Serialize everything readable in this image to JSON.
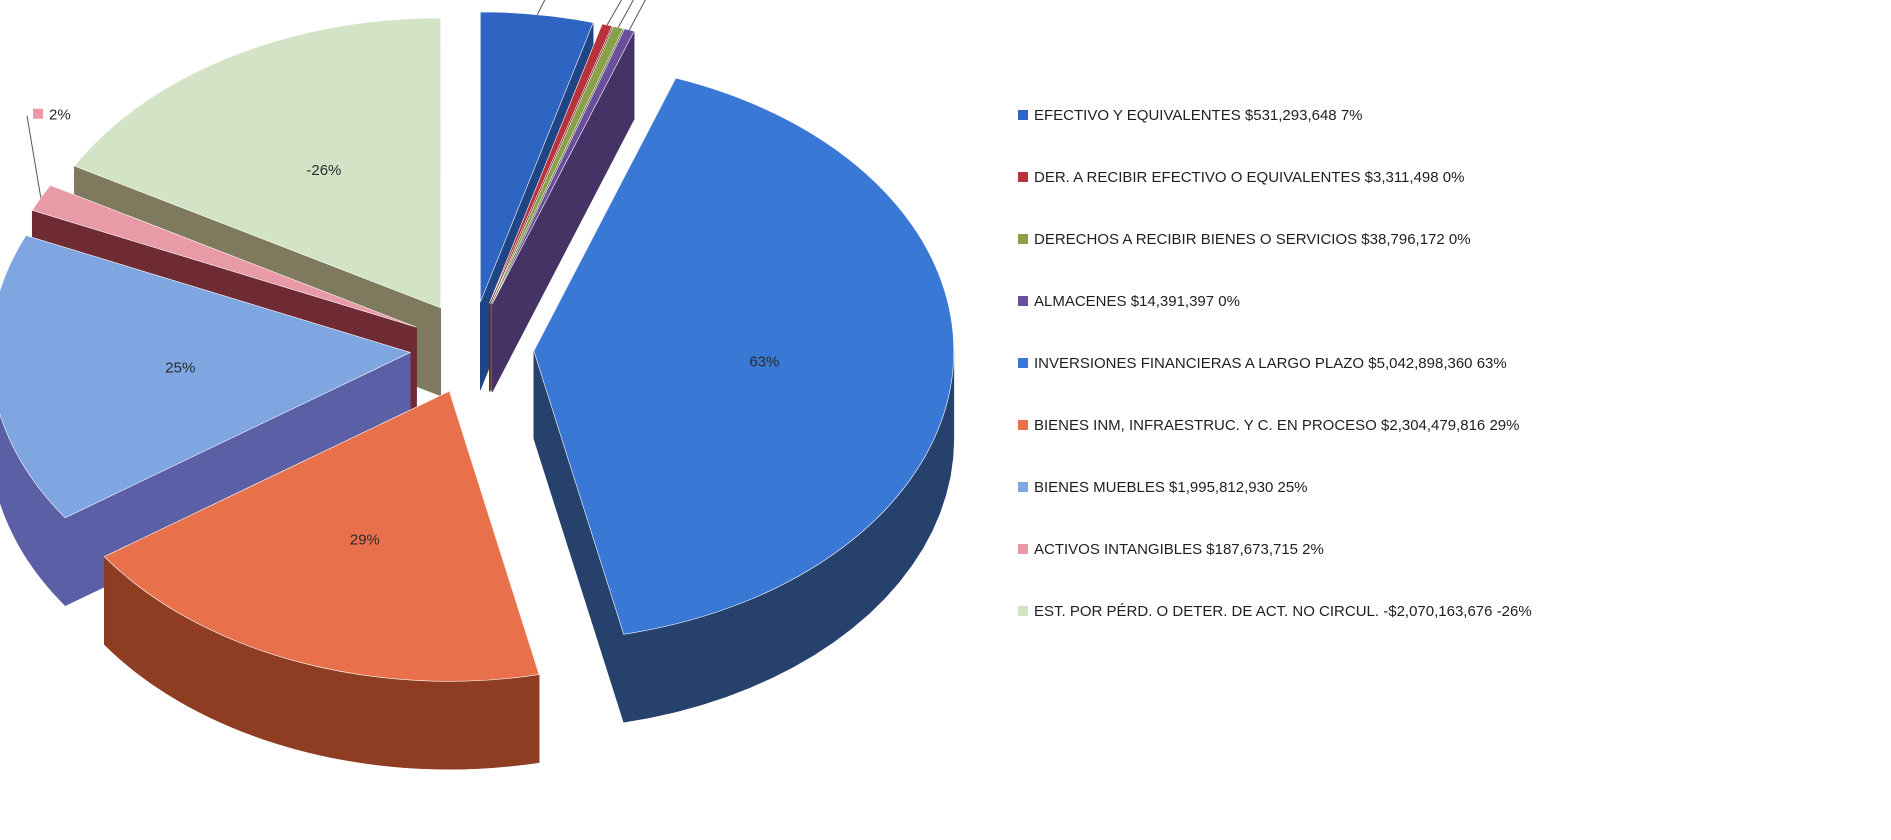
{
  "chart_data": {
    "type": "pie",
    "title": "",
    "slices": [
      {
        "label": "EFECTIVO Y EQUIVALENTES",
        "amount": "$531,293,648",
        "pct_label": "7%",
        "value": 531293648,
        "color": "#2e64c2",
        "side": "#1f4585"
      },
      {
        "label": "DER. A RECIBIR EFECTIVO O EQUIVALENTES",
        "amount": "$3,311,498",
        "pct_label": "0%",
        "value": 3311498,
        "color": "#b8323c",
        "side": "#7a1f26"
      },
      {
        "label": "DERECHOS A RECIBIR BIENES O SERVICIOS",
        "amount": "$38,796,172",
        "pct_label": "0%",
        "value": 38796172,
        "color": "#8aa04a",
        "side": "#5b6b2f"
      },
      {
        "label": "ALMACENES",
        "amount": "$14,391,397",
        "pct_label": "0%",
        "value": 14391397,
        "color": "#6b4f9c",
        "side": "#463366"
      },
      {
        "label": "INVERSIONES FINANCIERAS A LARGO PLAZO",
        "amount": "$5,042,898,360",
        "pct_label": "63%",
        "value": 5042898360,
        "color": "#3a78d6",
        "side": "#26416c"
      },
      {
        "label": "BIENES INM, INFRAESTRUC. Y C. EN PROCESO",
        "amount": "$2,304,479,816",
        "pct_label": "29%",
        "value": 2304479816,
        "color": "#e8704a",
        "side": "#8e3d22"
      },
      {
        "label": "BIENES MUEBLES",
        "amount": "$1,995,812,930",
        "pct_label": "25%",
        "value": 1995812930,
        "color": "#7fa6e0",
        "side": "#5a5fa6"
      },
      {
        "label": "ACTIVOS INTANGIBLES",
        "amount": "$187,673,715",
        "pct_label": "2%",
        "value": 187673715,
        "color": "#e89aa6",
        "side": "#6e2b33"
      },
      {
        "label": "EST. POR PÉRD. O DETER. DE ACT. NO CIRCUL.",
        "amount": "-$2,070,163,676",
        "pct_label": "-26%",
        "value": -2070163676,
        "color": "#d3e4c6",
        "side": "#7f7a5e"
      }
    ]
  }
}
